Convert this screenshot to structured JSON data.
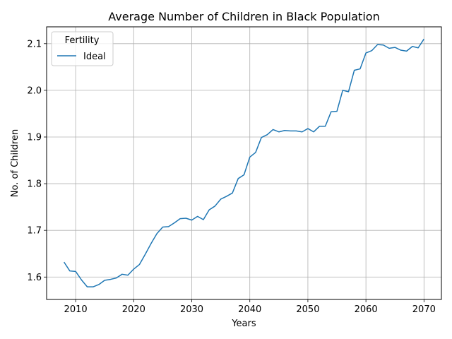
{
  "chart_data": {
    "type": "line",
    "title": "Average Number of Children in Black Population",
    "xlabel": "Years",
    "ylabel": "No. of Children",
    "xlim": [
      2005,
      2073
    ],
    "ylim": [
      1.552,
      2.136
    ],
    "xticks": [
      2010,
      2020,
      2030,
      2040,
      2050,
      2060,
      2070
    ],
    "yticks": [
      1.6,
      1.7,
      1.8,
      1.9,
      2.0,
      2.1
    ],
    "ytick_labels": [
      "1.6",
      "1.7",
      "1.8",
      "1.9",
      "2.0",
      "2.1"
    ],
    "grid": true,
    "legend": {
      "title": "Fertility",
      "placement": "top-left"
    },
    "series": [
      {
        "name": "Ideal",
        "color": "#1f77b4",
        "x": [
          2008,
          2009,
          2010,
          2011,
          2012,
          2013,
          2014,
          2015,
          2016,
          2017,
          2018,
          2019,
          2020,
          2021,
          2022,
          2023,
          2024,
          2025,
          2026,
          2027,
          2028,
          2029,
          2030,
          2031,
          2032,
          2033,
          2034,
          2035,
          2036,
          2037,
          2038,
          2039,
          2040,
          2041,
          2042,
          2043,
          2044,
          2045,
          2046,
          2047,
          2048,
          2049,
          2050,
          2051,
          2052,
          2053,
          2054,
          2055,
          2056,
          2057,
          2058,
          2059,
          2060,
          2061,
          2062,
          2063,
          2064,
          2065,
          2066,
          2067,
          2068,
          2069,
          2070
        ],
        "values": [
          1.632,
          1.613,
          1.612,
          1.594,
          1.579,
          1.579,
          1.584,
          1.593,
          1.595,
          1.598,
          1.606,
          1.604,
          1.617,
          1.627,
          1.649,
          1.672,
          1.693,
          1.707,
          1.708,
          1.716,
          1.725,
          1.726,
          1.722,
          1.73,
          1.723,
          1.744,
          1.752,
          1.767,
          1.773,
          1.78,
          1.811,
          1.819,
          1.857,
          1.867,
          1.899,
          1.905,
          1.916,
          1.911,
          1.914,
          1.913,
          1.913,
          1.911,
          1.918,
          1.911,
          1.923,
          1.923,
          1.954,
          1.955,
          2.0,
          1.997,
          2.043,
          2.046,
          2.08,
          2.085,
          2.098,
          2.097,
          2.09,
          2.092,
          2.086,
          2.084,
          2.094,
          2.091,
          2.11
        ]
      }
    ]
  }
}
